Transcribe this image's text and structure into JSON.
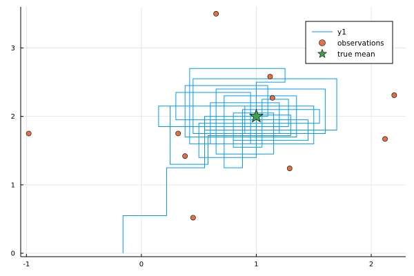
{
  "chart_data": {
    "type": "scatter",
    "title": "",
    "xlabel": "",
    "ylabel": "",
    "xlim": [
      -1.05,
      2.3
    ],
    "ylim": [
      -0.05,
      3.6
    ],
    "grid": true,
    "legend_position": "top-right",
    "x_ticks": [
      -1,
      0,
      1,
      2
    ],
    "x_tick_labels": [
      "-1",
      "0",
      "1",
      "2"
    ],
    "y_ticks": [
      0,
      1,
      2,
      3
    ],
    "y_tick_labels": [
      "0",
      "1",
      "2",
      "3"
    ],
    "series": [
      {
        "name": "y1",
        "kind": "step",
        "color": "#009AFA",
        "points": [
          [
            -0.16,
            0.0
          ],
          [
            -0.16,
            0.55
          ],
          [
            0.22,
            0.55
          ],
          [
            0.22,
            1.25
          ],
          [
            0.55,
            1.25
          ],
          [
            0.55,
            1.85
          ],
          [
            0.8,
            1.85
          ],
          [
            0.8,
            1.55
          ],
          [
            1.05,
            1.55
          ],
          [
            1.05,
            2.25
          ],
          [
            1.28,
            2.25
          ],
          [
            1.28,
            1.85
          ],
          [
            0.15,
            1.85
          ],
          [
            0.15,
            2.15
          ],
          [
            1.5,
            2.15
          ],
          [
            1.5,
            1.6
          ],
          [
            0.6,
            1.6
          ],
          [
            0.6,
            2.2
          ],
          [
            1.2,
            2.2
          ],
          [
            1.2,
            1.75
          ],
          [
            0.45,
            1.75
          ],
          [
            0.45,
            2.55
          ],
          [
            1.7,
            2.55
          ],
          [
            1.7,
            1.8
          ],
          [
            0.55,
            1.8
          ],
          [
            0.55,
            2.0
          ],
          [
            1.1,
            2.0
          ],
          [
            1.1,
            2.45
          ],
          [
            0.38,
            2.45
          ],
          [
            0.38,
            1.7
          ],
          [
            1.35,
            1.7
          ],
          [
            1.35,
            2.3
          ],
          [
            0.72,
            2.3
          ],
          [
            0.72,
            1.25
          ],
          [
            0.88,
            1.25
          ],
          [
            0.88,
            2.1
          ],
          [
            1.55,
            2.1
          ],
          [
            1.55,
            1.9
          ],
          [
            0.5,
            1.9
          ],
          [
            0.5,
            1.4
          ],
          [
            1.0,
            1.4
          ],
          [
            1.0,
            2.5
          ],
          [
            1.25,
            2.5
          ],
          [
            1.25,
            2.7
          ],
          [
            0.42,
            2.7
          ],
          [
            0.42,
            1.6
          ],
          [
            0.95,
            1.6
          ],
          [
            0.95,
            2.35
          ],
          [
            0.3,
            2.35
          ],
          [
            0.3,
            1.95
          ],
          [
            1.45,
            1.95
          ],
          [
            1.45,
            1.65
          ],
          [
            0.8,
            1.65
          ],
          [
            0.8,
            2.05
          ],
          [
            1.15,
            2.05
          ],
          [
            1.15,
            1.45
          ],
          [
            0.65,
            1.45
          ],
          [
            0.65,
            2.4
          ],
          [
            1.6,
            2.4
          ],
          [
            1.6,
            1.75
          ],
          [
            0.9,
            1.75
          ],
          [
            0.9,
            2.15
          ],
          [
            0.25,
            2.15
          ],
          [
            0.25,
            1.3
          ],
          [
            0.58,
            1.3
          ],
          [
            0.58,
            1.72
          ],
          [
            1.3,
            1.72
          ],
          [
            1.3,
            2.02
          ],
          [
            1.0,
            2.02
          ],
          [
            1.0,
            2.0
          ]
        ]
      },
      {
        "name": "observations",
        "kind": "scatter",
        "color": "#E26F46",
        "x": [
          0.65,
          -0.98,
          0.32,
          0.38,
          0.45,
          1.12,
          1.14,
          1.29,
          2.12,
          2.2
        ],
        "y": [
          3.5,
          1.75,
          1.75,
          1.42,
          0.52,
          2.58,
          2.27,
          1.24,
          1.67,
          2.31
        ]
      },
      {
        "name": "true mean",
        "kind": "star",
        "color": "#3DA44D",
        "x": [
          1.0
        ],
        "y": [
          2.0
        ]
      }
    ]
  }
}
